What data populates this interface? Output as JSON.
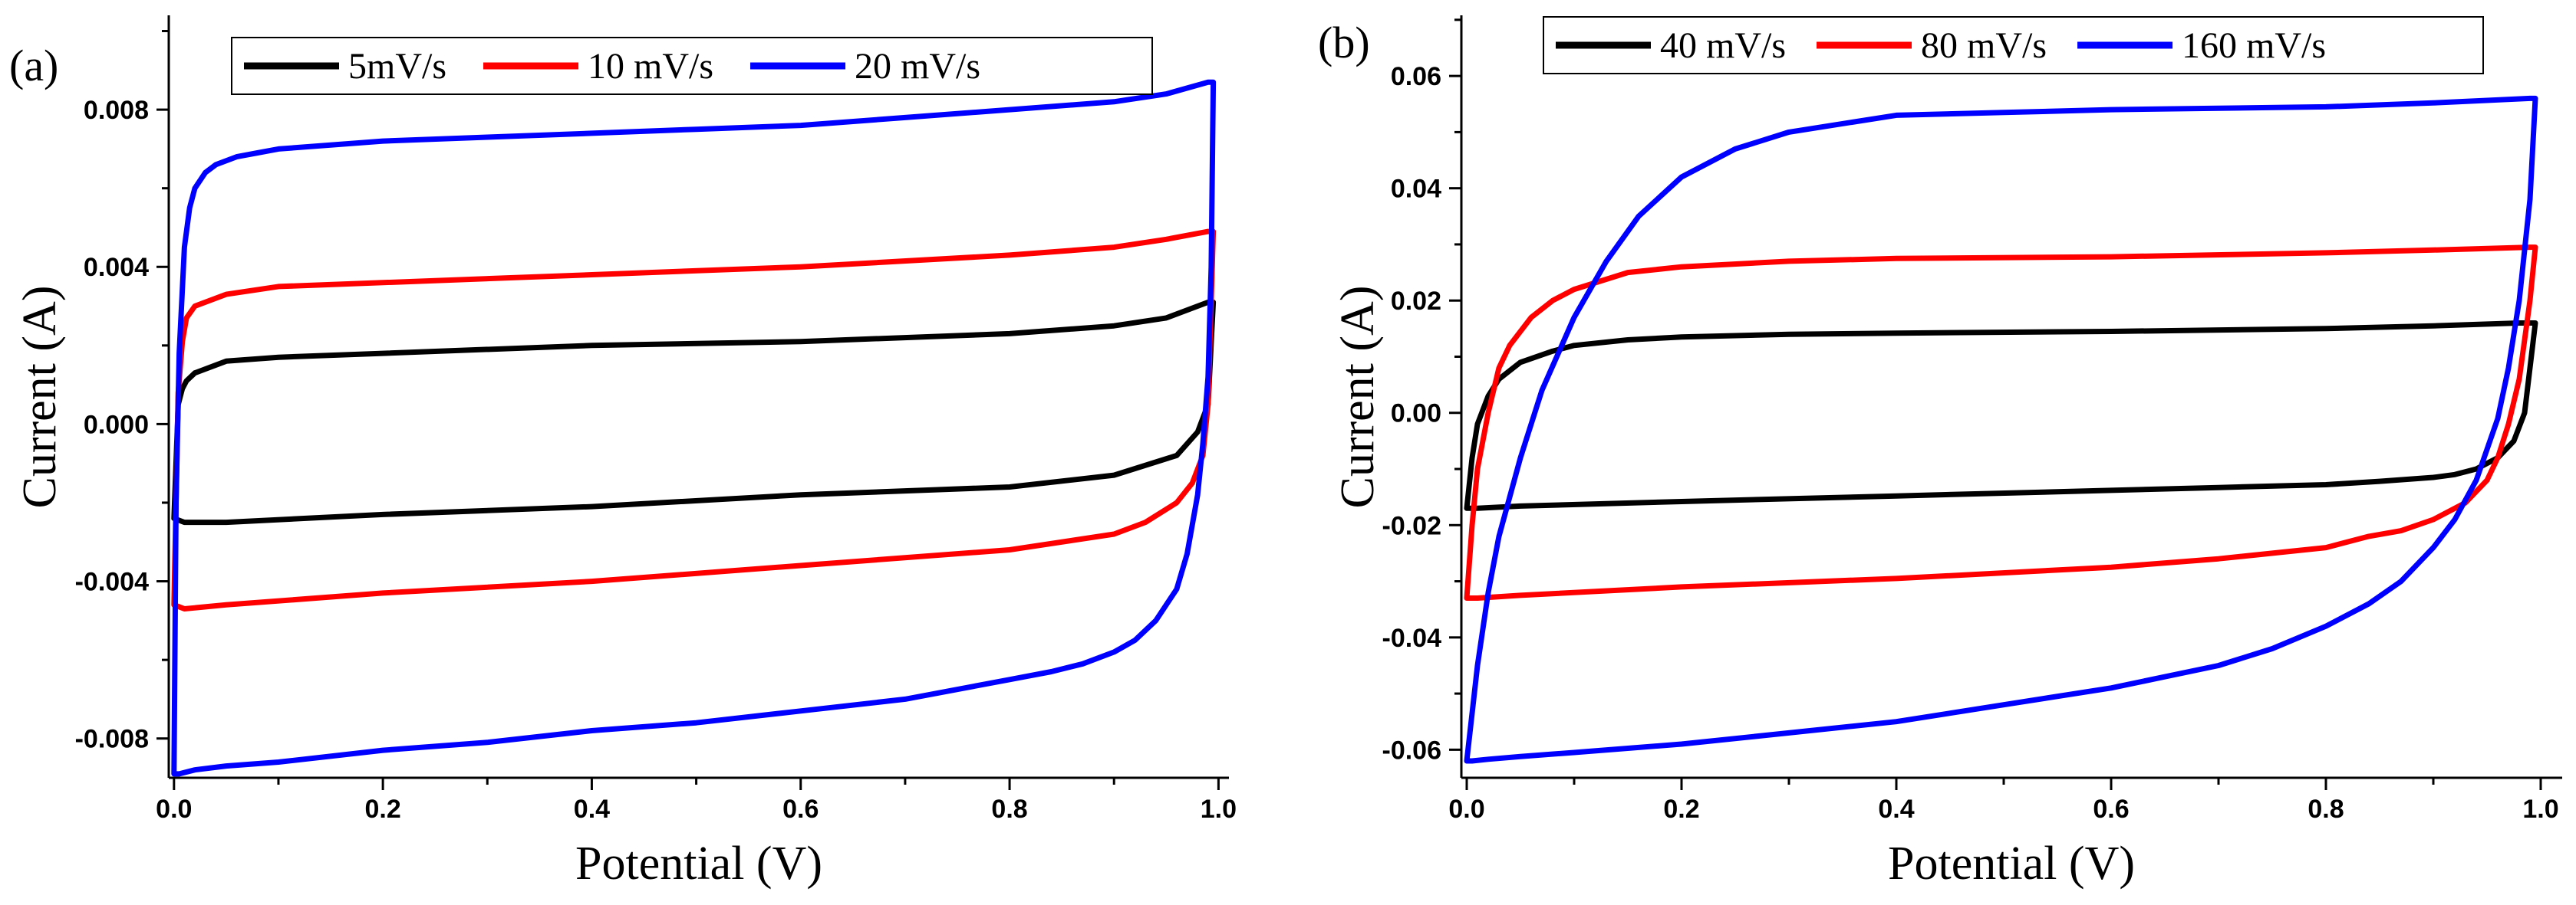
{
  "chart_data": [
    {
      "type": "line",
      "panel_label": "(a)",
      "xlabel": "Potential (V)",
      "ylabel": "Current (A)",
      "xlim": [
        -0.005,
        1.01
      ],
      "ylim": [
        -0.009,
        0.0104
      ],
      "xticks": [
        0.0,
        0.2,
        0.4,
        0.6,
        0.8,
        1.0
      ],
      "xtick_labels": [
        "0.0",
        "0.2",
        "0.4",
        "0.6",
        "0.8",
        "1.0"
      ],
      "yticks": [
        -0.008,
        -0.004,
        0.0,
        0.004,
        0.008
      ],
      "ytick_labels": [
        "-0.008",
        "-0.004",
        "0.000",
        "0.004",
        "0.008"
      ],
      "legend_position": "top-center",
      "series": [
        {
          "name": "5mV/s",
          "color": "#000000",
          "upper": {
            "x": [
              0.0,
              0.004,
              0.008,
              0.012,
              0.02,
              0.05,
              0.1,
              0.2,
              0.4,
              0.6,
              0.8,
              0.9,
              0.95,
              0.99
            ],
            "y": [
              -0.0024,
              0.0005,
              0.0009,
              0.0011,
              0.0013,
              0.0016,
              0.0017,
              0.0018,
              0.002,
              0.0021,
              0.0023,
              0.0025,
              0.0027,
              0.0031
            ]
          },
          "lower": {
            "x": [
              0.995,
              0.99,
              0.98,
              0.96,
              0.9,
              0.8,
              0.6,
              0.4,
              0.2,
              0.05,
              0.01,
              0.0
            ],
            "y": [
              0.0031,
              0.0005,
              -0.0002,
              -0.0008,
              -0.0013,
              -0.0016,
              -0.0018,
              -0.0021,
              -0.0023,
              -0.0025,
              -0.0025,
              -0.0024
            ]
          }
        },
        {
          "name": "10 mV/s",
          "color": "#ff0000",
          "upper": {
            "x": [
              0.0,
              0.004,
              0.008,
              0.012,
              0.02,
              0.05,
              0.1,
              0.2,
              0.4,
              0.6,
              0.8,
              0.9,
              0.95,
              0.99
            ],
            "y": [
              -0.0046,
              0.0008,
              0.0021,
              0.0027,
              0.003,
              0.0033,
              0.0035,
              0.0036,
              0.0038,
              0.004,
              0.0043,
              0.0045,
              0.0047,
              0.0049
            ]
          },
          "lower": {
            "x": [
              0.995,
              0.99,
              0.985,
              0.975,
              0.96,
              0.93,
              0.9,
              0.8,
              0.6,
              0.4,
              0.2,
              0.05,
              0.01,
              0.0
            ],
            "y": [
              0.0049,
              0.0005,
              -0.0008,
              -0.0015,
              -0.002,
              -0.0025,
              -0.0028,
              -0.0032,
              -0.0036,
              -0.004,
              -0.0043,
              -0.0046,
              -0.0047,
              -0.0046
            ]
          }
        },
        {
          "name": "20 mV/s",
          "color": "#0000ff",
          "upper": {
            "x": [
              0.0,
              0.002,
              0.005,
              0.01,
              0.015,
              0.02,
              0.03,
              0.04,
              0.06,
              0.08,
              0.1,
              0.15,
              0.2,
              0.3,
              0.4,
              0.5,
              0.6,
              0.7,
              0.8,
              0.9,
              0.95,
              0.99
            ],
            "y": [
              -0.0089,
              -0.002,
              0.0018,
              0.0045,
              0.0055,
              0.006,
              0.0064,
              0.0066,
              0.0068,
              0.0069,
              0.007,
              0.0071,
              0.0072,
              0.0073,
              0.0074,
              0.0075,
              0.0076,
              0.0078,
              0.008,
              0.0082,
              0.0084,
              0.0087
            ]
          },
          "lower": {
            "x": [
              0.995,
              0.993,
              0.99,
              0.985,
              0.98,
              0.97,
              0.96,
              0.94,
              0.92,
              0.9,
              0.87,
              0.84,
              0.8,
              0.7,
              0.6,
              0.5,
              0.4,
              0.3,
              0.2,
              0.1,
              0.05,
              0.02,
              0.005,
              0.0
            ],
            "y": [
              0.0087,
              0.004,
              0.0012,
              -0.0005,
              -0.0018,
              -0.0033,
              -0.0042,
              -0.005,
              -0.0055,
              -0.0058,
              -0.0061,
              -0.0063,
              -0.0065,
              -0.007,
              -0.0073,
              -0.0076,
              -0.0078,
              -0.0081,
              -0.0083,
              -0.0086,
              -0.0087,
              -0.0088,
              -0.0089,
              -0.0089
            ]
          }
        }
      ]
    },
    {
      "type": "line",
      "panel_label": "(b)",
      "xlabel": "Potential (V)",
      "ylabel": "Current (A)",
      "xlim": [
        -0.005,
        1.02
      ],
      "ylim": [
        -0.065,
        0.0708
      ],
      "xticks": [
        0.0,
        0.2,
        0.4,
        0.6,
        0.8,
        1.0
      ],
      "xtick_labels": [
        "0.0",
        "0.2",
        "0.4",
        "0.6",
        "0.8",
        "1.0"
      ],
      "yticks": [
        -0.06,
        -0.04,
        -0.02,
        0.0,
        0.02,
        0.04,
        0.06
      ],
      "ytick_labels": [
        "-0.06",
        "-0.04",
        "-0.02",
        "0.00",
        "0.02",
        "0.04",
        "0.06"
      ],
      "legend_position": "top-center",
      "series": [
        {
          "name": "40 mV/s",
          "color": "#000000",
          "upper": {
            "x": [
              0.0,
              0.005,
              0.01,
              0.02,
              0.03,
              0.05,
              0.08,
              0.1,
              0.15,
              0.2,
              0.3,
              0.4,
              0.6,
              0.8,
              0.9,
              0.98
            ],
            "y": [
              -0.017,
              -0.008,
              -0.002,
              0.003,
              0.006,
              0.009,
              0.011,
              0.012,
              0.013,
              0.0135,
              0.014,
              0.0142,
              0.0145,
              0.015,
              0.0155,
              0.016
            ]
          },
          "lower": {
            "x": [
              0.995,
              0.99,
              0.985,
              0.975,
              0.96,
              0.94,
              0.92,
              0.9,
              0.85,
              0.8,
              0.7,
              0.6,
              0.4,
              0.2,
              0.05,
              0.01,
              0.0
            ],
            "y": [
              0.016,
              0.008,
              0.0,
              -0.005,
              -0.008,
              -0.01,
              -0.011,
              -0.0115,
              -0.0122,
              -0.0128,
              -0.0133,
              -0.0138,
              -0.0148,
              -0.0158,
              -0.0166,
              -0.017,
              -0.017
            ]
          }
        },
        {
          "name": "80 mV/s",
          "color": "#ff0000",
          "upper": {
            "x": [
              0.0,
              0.005,
              0.01,
              0.02,
              0.03,
              0.04,
              0.06,
              0.08,
              0.1,
              0.15,
              0.2,
              0.3,
              0.4,
              0.6,
              0.8,
              0.9,
              0.99
            ],
            "y": [
              -0.033,
              -0.02,
              -0.01,
              0.0,
              0.008,
              0.012,
              0.017,
              0.02,
              0.022,
              0.025,
              0.026,
              0.027,
              0.0275,
              0.0278,
              0.0285,
              0.029,
              0.0295
            ]
          },
          "lower": {
            "x": [
              0.995,
              0.99,
              0.98,
              0.97,
              0.96,
              0.95,
              0.93,
              0.9,
              0.87,
              0.84,
              0.8,
              0.7,
              0.6,
              0.4,
              0.2,
              0.05,
              0.01,
              0.0
            ],
            "y": [
              0.0295,
              0.02,
              0.006,
              -0.002,
              -0.008,
              -0.012,
              -0.016,
              -0.019,
              -0.021,
              -0.022,
              -0.024,
              -0.026,
              -0.0275,
              -0.0295,
              -0.031,
              -0.0325,
              -0.033,
              -0.033
            ]
          }
        },
        {
          "name": "160 mV/s",
          "color": "#0000ff",
          "upper": {
            "x": [
              0.0,
              0.01,
              0.02,
              0.03,
              0.05,
              0.07,
              0.1,
              0.13,
              0.16,
              0.2,
              0.25,
              0.3,
              0.4,
              0.5,
              0.6,
              0.8,
              0.9,
              0.99
            ],
            "y": [
              -0.062,
              -0.045,
              -0.032,
              -0.022,
              -0.008,
              0.004,
              0.017,
              0.027,
              0.035,
              0.042,
              0.047,
              0.05,
              0.053,
              0.0535,
              0.054,
              0.0545,
              0.0552,
              0.056
            ]
          },
          "lower": {
            "x": [
              0.995,
              0.99,
              0.98,
              0.97,
              0.96,
              0.94,
              0.92,
              0.9,
              0.87,
              0.84,
              0.8,
              0.75,
              0.7,
              0.6,
              0.5,
              0.4,
              0.3,
              0.2,
              0.1,
              0.05,
              0.02,
              0.005,
              0.0
            ],
            "y": [
              0.056,
              0.038,
              0.02,
              0.008,
              -0.001,
              -0.012,
              -0.019,
              -0.024,
              -0.03,
              -0.034,
              -0.038,
              -0.042,
              -0.045,
              -0.049,
              -0.052,
              -0.055,
              -0.057,
              -0.059,
              -0.0605,
              -0.0612,
              -0.0617,
              -0.062,
              -0.062
            ]
          }
        }
      ]
    }
  ]
}
